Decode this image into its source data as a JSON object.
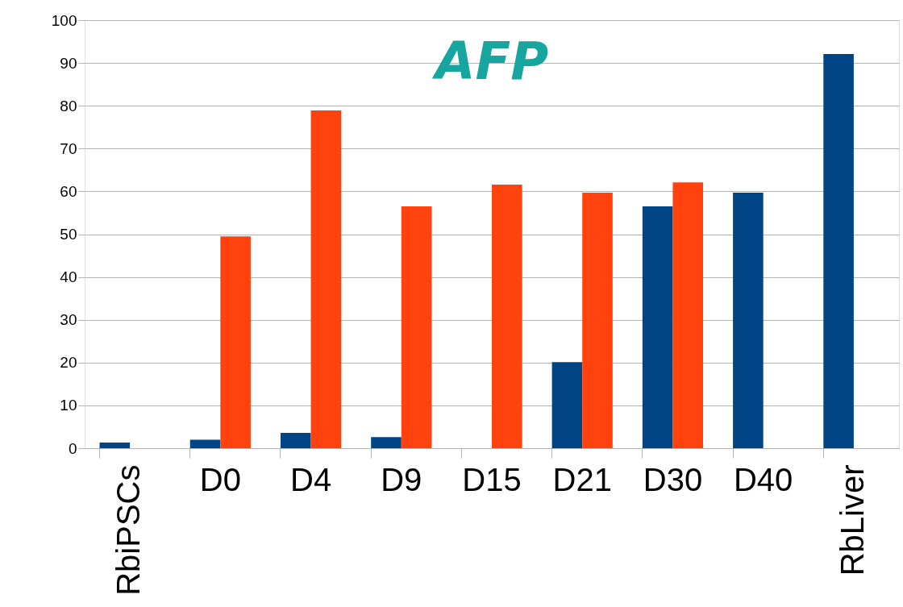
{
  "chart_data": {
    "type": "bar",
    "title": "AFP",
    "categories": [
      "RbiPSCs",
      "D0",
      "D4",
      "D9",
      "D15",
      "D21",
      "D30",
      "D40",
      "RbLiver"
    ],
    "series": [
      {
        "color": "#004586",
        "values": [
          1.3,
          2.0,
          3.6,
          2.6,
          null,
          20.1,
          56.5,
          59.7,
          92.1
        ]
      },
      {
        "color": "#ff420e",
        "values": [
          null,
          49.5,
          78.9,
          56.5,
          61.6,
          59.7,
          62.1,
          null,
          null
        ]
      }
    ],
    "ylim": [
      0,
      100
    ],
    "yticks": [
      0,
      10,
      20,
      30,
      40,
      50,
      60,
      70,
      80,
      90,
      100
    ],
    "grid": "y",
    "legend": false
  }
}
